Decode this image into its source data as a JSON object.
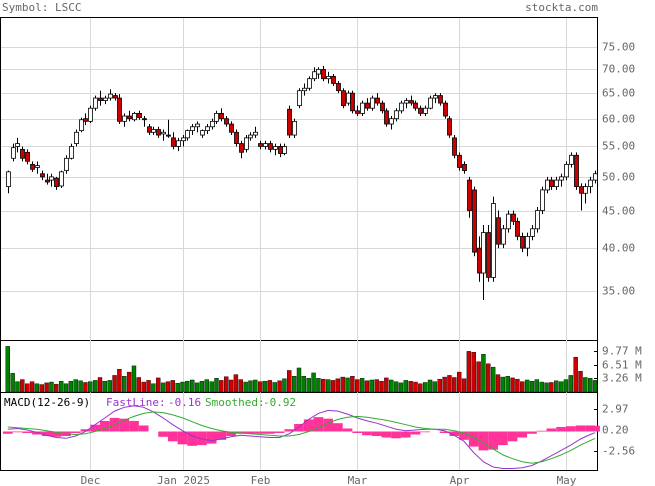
{
  "header": {
    "symbol": "Symbol: LSCC",
    "site": "stockta.com"
  },
  "chart_data": [
    {
      "type": "candlestick",
      "xlim": [
        -1.5,
        121.5
      ],
      "xticks": [
        {
          "value": 17,
          "label": "Dec"
        },
        {
          "value": 36,
          "label": "Jan 2025"
        },
        {
          "value": 52,
          "label": "Feb"
        },
        {
          "value": 72,
          "label": "Mar"
        },
        {
          "value": 93,
          "label": "Apr"
        },
        {
          "value": 115,
          "label": "May"
        }
      ],
      "ylim": [
        30,
        82.5
      ],
      "log": true,
      "grid": true,
      "yticks": [
        {
          "value": 75,
          "label": "75.00"
        },
        {
          "value": 70,
          "label": "70.00"
        },
        {
          "value": 65,
          "label": "65.00"
        },
        {
          "value": 60,
          "label": "60.00"
        },
        {
          "value": 55,
          "label": "55.00"
        },
        {
          "value": 50,
          "label": "50.00"
        },
        {
          "value": 45,
          "label": "45.00"
        },
        {
          "value": 40,
          "label": "40.00"
        },
        {
          "value": 35,
          "label": "35.00"
        }
      ],
      "up_color": "#ffffff",
      "down_color": "#cc0000",
      "ohlc": [
        [
          48.5,
          51,
          47.5,
          50.8
        ],
        [
          53,
          55.5,
          52.5,
          54.8
        ],
        [
          55,
          56.5,
          54,
          55.5
        ],
        [
          54.5,
          55,
          52.5,
          53
        ],
        [
          54,
          54.5,
          52,
          52.5
        ],
        [
          52,
          52.5,
          50.8,
          51.2
        ],
        [
          51.5,
          52.5,
          50.5,
          51.8
        ],
        [
          50.5,
          51,
          49.5,
          50
        ],
        [
          49.5,
          50.5,
          48.8,
          49.2
        ],
        [
          49.5,
          50.5,
          48.5,
          50
        ],
        [
          49.8,
          50,
          48,
          48.5
        ],
        [
          48.6,
          51,
          48.3,
          50.8
        ],
        [
          51,
          53.5,
          50.5,
          53
        ],
        [
          53,
          55.5,
          52.8,
          55
        ],
        [
          55.5,
          58,
          55,
          57.5
        ],
        [
          57.8,
          60.2,
          57.5,
          59.8
        ],
        [
          60,
          61,
          58.8,
          59.5
        ],
        [
          59.5,
          62.5,
          59.2,
          62
        ],
        [
          62,
          64.5,
          61.5,
          64
        ],
        [
          64,
          65.5,
          62.5,
          63.5
        ],
        [
          63.5,
          64.5,
          62.8,
          64
        ],
        [
          64,
          65.8,
          63.5,
          64.8
        ],
        [
          64.5,
          65,
          63.5,
          64
        ],
        [
          64,
          64.8,
          59,
          59.5
        ],
        [
          59.5,
          61,
          58.5,
          60.5
        ],
        [
          60.5,
          61.5,
          59.5,
          60
        ],
        [
          59.8,
          61.3,
          59.5,
          61
        ],
        [
          61,
          61.5,
          59.8,
          60.2
        ],
        [
          60,
          60.5,
          58.5,
          59.8
        ],
        [
          58.5,
          59,
          57,
          57.5
        ],
        [
          57.5,
          58.5,
          57,
          58
        ],
        [
          58,
          58.5,
          56.5,
          57
        ],
        [
          57.2,
          58,
          56,
          57.5
        ],
        [
          57,
          59.8,
          56.5,
          56.8
        ],
        [
          56.5,
          57.5,
          54.5,
          55
        ],
        [
          55,
          56.5,
          54.2,
          56
        ],
        [
          56,
          57,
          55,
          56.5
        ],
        [
          56.5,
          58,
          56,
          57.8
        ],
        [
          57.8,
          59,
          57,
          58.5
        ],
        [
          58.5,
          59.5,
          57.5,
          59
        ],
        [
          57,
          58,
          56.5,
          57.8
        ],
        [
          57.8,
          59,
          57.2,
          58.5
        ],
        [
          58.5,
          60,
          58,
          59.5
        ],
        [
          59.5,
          61.5,
          59,
          61
        ],
        [
          61,
          62,
          59.5,
          60
        ],
        [
          60,
          60.5,
          58.5,
          59
        ],
        [
          59,
          59.5,
          57,
          57.5
        ],
        [
          57.5,
          58,
          55,
          55.5
        ],
        [
          55.5,
          56,
          53,
          54
        ],
        [
          54.5,
          57,
          54,
          56.5
        ],
        [
          56.5,
          57.5,
          56,
          57
        ],
        [
          57,
          58.5,
          56.5,
          57.5
        ],
        [
          55.5,
          56,
          54.5,
          55
        ],
        [
          55,
          56,
          54.5,
          55.5
        ],
        [
          55.5,
          56,
          54,
          54.5
        ],
        [
          54.5,
          55.5,
          53.5,
          55
        ],
        [
          55,
          55.5,
          53.2,
          53.8
        ],
        [
          53.8,
          55.5,
          53.5,
          55
        ],
        [
          61.8,
          62.5,
          56.5,
          57
        ],
        [
          57,
          60,
          56.5,
          59.5
        ],
        [
          62.5,
          66,
          62,
          65.5
        ],
        [
          65.5,
          67,
          64.5,
          66
        ],
        [
          66,
          68.5,
          65.5,
          68
        ],
        [
          68,
          70.5,
          67.5,
          69.5
        ],
        [
          69,
          70.5,
          68,
          70
        ],
        [
          70,
          70.8,
          67.5,
          68
        ],
        [
          68,
          69.5,
          67,
          68.5
        ],
        [
          68.5,
          69,
          66.5,
          67
        ],
        [
          67,
          67.5,
          65,
          65.5
        ],
        [
          65.5,
          66,
          62,
          62.5
        ],
        [
          63,
          65.5,
          62.5,
          65
        ],
        [
          65,
          65.5,
          61,
          61.5
        ],
        [
          61.5,
          62.5,
          60.5,
          61
        ],
        [
          61,
          63.5,
          60.5,
          63
        ],
        [
          63,
          64,
          61.5,
          62
        ],
        [
          62,
          64.5,
          61.5,
          64
        ],
        [
          64,
          65,
          62.5,
          63
        ],
        [
          63,
          63.5,
          61,
          61.5
        ],
        [
          61.5,
          62,
          58.5,
          59
        ],
        [
          59,
          60.5,
          58,
          60
        ],
        [
          60,
          62,
          59.5,
          61.5
        ],
        [
          61.5,
          63.5,
          61,
          63
        ],
        [
          63,
          64,
          62,
          63.5
        ],
        [
          63.5,
          64.5,
          62.5,
          63
        ],
        [
          63,
          63.5,
          61.5,
          62
        ],
        [
          62,
          62.5,
          60.5,
          61
        ],
        [
          61,
          62.5,
          60.5,
          62
        ],
        [
          62,
          64.5,
          61.8,
          64
        ],
        [
          64,
          65,
          63,
          64.5
        ],
        [
          64.5,
          65,
          62.5,
          63
        ],
        [
          63,
          63.5,
          60,
          60.5
        ],
        [
          60,
          60.5,
          56.5,
          57
        ],
        [
          56.5,
          57,
          53,
          53.5
        ],
        [
          53.5,
          54,
          51,
          51.5
        ],
        [
          52,
          52.5,
          50.5,
          51
        ],
        [
          49.5,
          50,
          44,
          45
        ],
        [
          48,
          48.5,
          39,
          39.5
        ],
        [
          40,
          41.5,
          36,
          37
        ],
        [
          37,
          43,
          34,
          42
        ],
        [
          42,
          43,
          36,
          36.5
        ],
        [
          36.5,
          47,
          36,
          46
        ],
        [
          44,
          45,
          40,
          40.5
        ],
        [
          40.5,
          43,
          40,
          42.5
        ],
        [
          42.5,
          45,
          42,
          44.5
        ],
        [
          44.5,
          45,
          43,
          43.5
        ],
        [
          43.5,
          44,
          41,
          41.5
        ],
        [
          41.5,
          42,
          39.5,
          40
        ],
        [
          40,
          42,
          39,
          41.5
        ],
        [
          41.5,
          43,
          41,
          42.5
        ],
        [
          42.5,
          45.5,
          42,
          45
        ],
        [
          45,
          48.5,
          44.5,
          48
        ],
        [
          48,
          50,
          47.5,
          49.5
        ],
        [
          49.5,
          50,
          48,
          48.5
        ],
        [
          48.5,
          50,
          48,
          49.5
        ],
        [
          49.5,
          50.5,
          48.5,
          50
        ],
        [
          50,
          52.5,
          49.5,
          52
        ],
        [
          52,
          54,
          51.5,
          53.5
        ],
        [
          53.5,
          54,
          48,
          48.5
        ],
        [
          48.5,
          49,
          45,
          47.5
        ],
        [
          47.5,
          49,
          46,
          48.5
        ],
        [
          48.5,
          50,
          47.5,
          49.5
        ],
        [
          49.5,
          51,
          49,
          50.5
        ]
      ]
    },
    {
      "type": "volume",
      "ylim": [
        0,
        12.3
      ],
      "yticks": [
        {
          "value": 9.77,
          "label": "9.77 M"
        },
        {
          "value": 6.51,
          "label": "6.51 M"
        },
        {
          "value": 3.26,
          "label": "3.26 M"
        }
      ],
      "up_color": "#008000",
      "down_color": "#cc0000",
      "values": [
        11,
        4.5,
        2.5,
        3,
        2,
        2.5,
        2,
        1.8,
        2.2,
        2.4,
        1.9,
        2.6,
        2,
        2.6,
        3,
        2.7,
        2.3,
        2.5,
        2.8,
        3.5,
        2.6,
        2.8,
        4,
        5.5,
        3.8,
        4.8,
        6.3,
        3.5,
        2.4,
        2.8,
        2,
        3.4,
        2.2,
        2.5,
        2.8,
        2.1,
        2.4,
        2.6,
        2.9,
        2.2,
        2.6,
        3,
        2.5,
        3.3,
        2.8,
        3.7,
        2.9,
        4.2,
        3,
        2.4,
        2.7,
        2.9,
        2.5,
        2.6,
        2.8,
        2.3,
        2.7,
        3.2,
        5.2,
        3.8,
        5.8,
        3.8,
        3.3,
        4.6,
        3.3,
        3.1,
        3,
        2.8,
        3.2,
        3.6,
        3.4,
        3.8,
        3,
        3.3,
        2.7,
        2.9,
        3,
        2.6,
        3.4,
        2.9,
        2.5,
        2.2,
        2.8,
        2.6,
        2.4,
        2,
        2.3,
        2.9,
        2.5,
        3.1,
        3.6,
        4,
        3.5,
        4.8,
        3.2,
        9.8,
        9.6,
        7.3,
        9.1,
        6.8,
        6,
        4.2,
        3.6,
        3.8,
        3.4,
        3.1,
        2.5,
        2.9,
        2.6,
        3,
        2.4,
        2.2,
        2.3,
        2.7,
        2.5,
        3,
        4,
        8.4,
        5,
        3.5,
        3.3,
        2.8
      ]
    },
    {
      "type": "macd",
      "title": "MACD(12-26-9)",
      "ylim": [
        -5.1,
        5.1
      ],
      "yticks": [
        2.97,
        {
          "value": 0.2,
          "label": "0.20"
        },
        -2.56
      ],
      "x": [
        0,
        2,
        4,
        6,
        8,
        10,
        12,
        14,
        16,
        18,
        20,
        22,
        24,
        26,
        28,
        30,
        32,
        34,
        36,
        38,
        40,
        42,
        44,
        46,
        48,
        50,
        52,
        54,
        56,
        58,
        60,
        62,
        64,
        66,
        68,
        70,
        72,
        74,
        76,
        78,
        80,
        82,
        84,
        86,
        88,
        90,
        92,
        94,
        96,
        98,
        100,
        102,
        104,
        106,
        108,
        110,
        112,
        114,
        116,
        118,
        120,
        121
      ],
      "series": [
        {
          "name": "FastLine:",
          "color": "#9933cc",
          "last": -0.16,
          "values": [
            0.3,
            0.4,
            0.2,
            -0.1,
            -0.5,
            -0.8,
            -0.9,
            -0.6,
            0,
            0.9,
            1.8,
            2.7,
            3.2,
            3.4,
            3.2,
            2.6,
            1.8,
            0.9,
            0.1,
            -0.6,
            -1,
            -1.2,
            -1,
            -0.7,
            -0.5,
            -0.6,
            -0.7,
            -0.8,
            -0.8,
            -0.3,
            0.6,
            1.6,
            2.4,
            2.8,
            2.7,
            2.3,
            1.8,
            1.4,
            1.1,
            0.7,
            0.3,
            0.1,
            0.2,
            0.3,
            0.3,
            0.1,
            -0.5,
            -1.3,
            -2.8,
            -4,
            -4.7,
            -4.9,
            -4.9,
            -4.8,
            -4.5,
            -3.9,
            -3.2,
            -2.5,
            -1.8,
            -1,
            -0.4,
            -0.16
          ]
        },
        {
          "name": "Smoothed:",
          "color": "#33aa33",
          "last": -0.92,
          "values": [
            0.6,
            0.5,
            0.4,
            0.3,
            0.1,
            -0.1,
            -0.3,
            -0.4,
            -0.3,
            0,
            0.4,
            0.9,
            1.5,
            2,
            2.4,
            2.6,
            2.5,
            2.2,
            1.8,
            1.3,
            0.8,
            0.4,
            0.1,
            -0.1,
            -0.2,
            -0.3,
            -0.4,
            -0.5,
            -0.6,
            -0.6,
            -0.4,
            0,
            0.5,
            1.1,
            1.6,
            1.9,
            2,
            1.9,
            1.7,
            1.5,
            1.2,
            0.9,
            0.6,
            0.4,
            0.3,
            0.3,
            0.1,
            -0.2,
            -0.8,
            -1.5,
            -2.3,
            -3.1,
            -3.6,
            -4,
            -4.2,
            -4,
            -3.6,
            -3.1,
            -2.5,
            -1.8,
            -1.2,
            -0.92
          ]
        }
      ],
      "histogram": {
        "color": "#ff3399",
        "values": [
          -0.3,
          -0.1,
          -0.2,
          -0.4,
          -0.6,
          -0.7,
          -0.6,
          -0.2,
          0.3,
          0.9,
          1.4,
          1.8,
          1.7,
          1.4,
          0.8,
          0,
          -0.7,
          -1.3,
          -1.7,
          -1.9,
          -1.8,
          -1.6,
          -1.1,
          -0.6,
          -0.3,
          -0.3,
          -0.3,
          -0.3,
          -0.2,
          0.3,
          1,
          1.6,
          1.9,
          1.7,
          1.1,
          0.4,
          -0.2,
          -0.5,
          -0.6,
          -0.8,
          -0.9,
          -0.8,
          -0.4,
          -0.1,
          0,
          -0.2,
          -0.6,
          -1.1,
          -2,
          -2.5,
          -2.4,
          -1.8,
          -1.3,
          -0.8,
          -0.3,
          0.1,
          0.4,
          0.6,
          0.7,
          0.8,
          0.8,
          0.76
        ]
      }
    }
  ]
}
